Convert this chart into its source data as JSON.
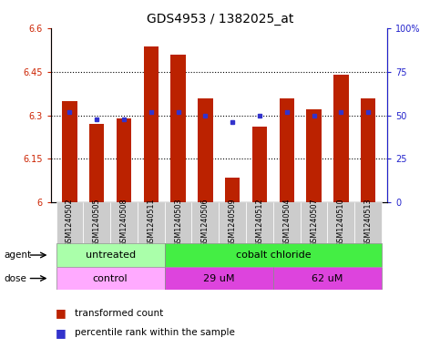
{
  "title": "GDS4953 / 1382025_at",
  "samples": [
    "GSM1240502",
    "GSM1240505",
    "GSM1240508",
    "GSM1240511",
    "GSM1240503",
    "GSM1240506",
    "GSM1240509",
    "GSM1240512",
    "GSM1240504",
    "GSM1240507",
    "GSM1240510",
    "GSM1240513"
  ],
  "bar_values": [
    6.35,
    6.27,
    6.29,
    6.54,
    6.51,
    6.36,
    6.085,
    6.26,
    6.36,
    6.32,
    6.44,
    6.36
  ],
  "percentile_values": [
    52,
    48,
    48,
    52,
    52,
    50,
    46,
    50,
    52,
    50,
    52,
    52
  ],
  "bar_base": 6.0,
  "ylim": [
    6.0,
    6.6
  ],
  "yticks_left": [
    6.0,
    6.15,
    6.3,
    6.45,
    6.6
  ],
  "yticks_right": [
    0,
    25,
    50,
    75,
    100
  ],
  "ytick_labels_left": [
    "6",
    "6.15",
    "6.3",
    "6.45",
    "6.6"
  ],
  "ytick_labels_right": [
    "0",
    "25",
    "50",
    "75",
    "100%"
  ],
  "bar_color": "#bb2200",
  "percentile_color": "#3333cc",
  "agent_labels": [
    "untreated",
    "cobalt chloride"
  ],
  "agent_color_untreated": "#aaffaa",
  "agent_color_cobalt": "#44ee44",
  "dose_labels": [
    "control",
    "29 uM",
    "62 uM"
  ],
  "dose_color_control": "#ffaaff",
  "dose_color_29uM": "#dd44dd",
  "dose_color_62uM": "#dd44dd",
  "legend_transformed": "transformed count",
  "legend_percentile": "percentile rank within the sample"
}
